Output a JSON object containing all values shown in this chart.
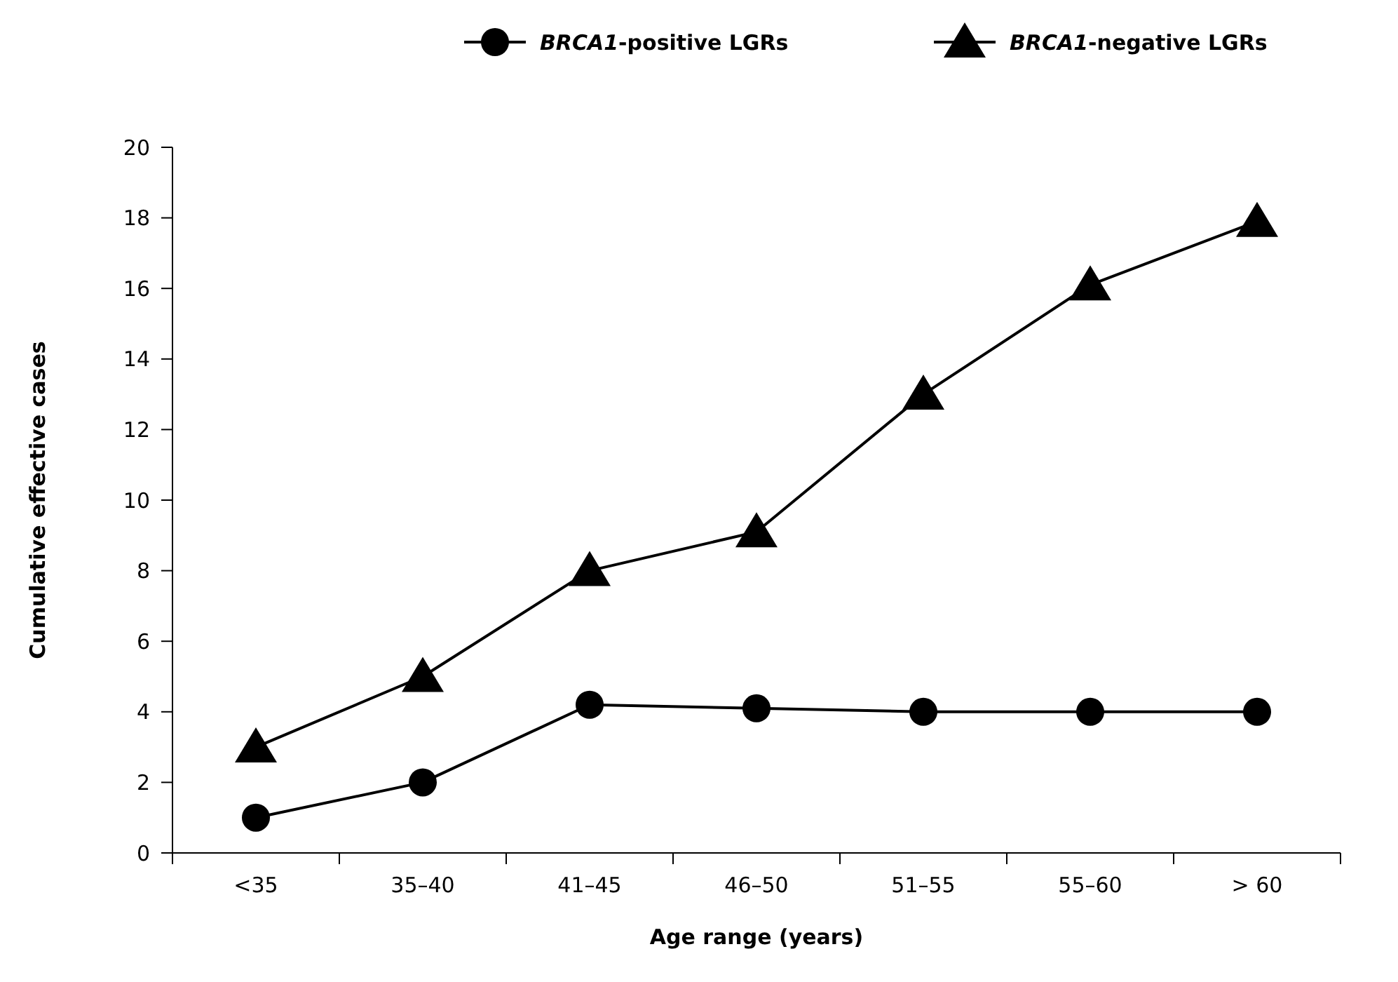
{
  "chart_data": {
    "type": "line",
    "xlabel": "Age range (years)",
    "ylabel": "Cumulative effective cases",
    "categories": [
      "<35",
      "35–40",
      "41–45",
      "46–50",
      "51–55",
      "55–60",
      "> 60"
    ],
    "series": [
      {
        "name": "BRCA1-positive LGRs",
        "color": "#000000",
        "marker": "circle",
        "values": [
          1,
          2,
          4.2,
          4.1,
          4,
          4,
          4
        ]
      },
      {
        "name": "BRCA1-negative LGRs",
        "color": "#000000",
        "marker": "triangle",
        "values": [
          3,
          5,
          8,
          9.1,
          13,
          16.1,
          17.9
        ]
      }
    ],
    "ylim": [
      0,
      20
    ],
    "yticks": [
      0,
      2,
      4,
      6,
      8,
      10,
      12,
      14,
      16,
      18,
      20
    ],
    "grid": false,
    "legend": "top",
    "line_style": "solid"
  }
}
